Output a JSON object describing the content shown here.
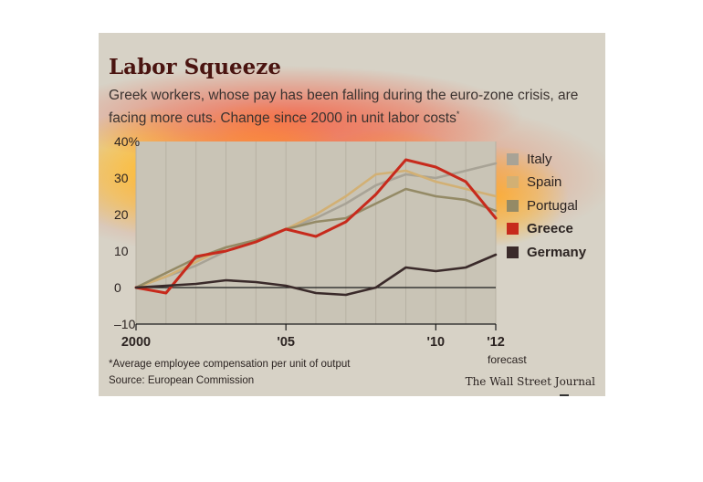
{
  "title": "Labor Squeeze",
  "subtitle": "Greek workers, whose pay has been falling during the euro-zone crisis, are facing more cuts. Change since 2000 in unit labor costs",
  "subtitle_mark": "*",
  "footnote": "*Average employee compensation per unit of output",
  "source": "Source: European Commission",
  "credit": "The Wall Street Journal",
  "forecast_label": "forecast",
  "chart_data": {
    "type": "line",
    "x": [
      2000,
      2001,
      2002,
      2003,
      2004,
      2005,
      2006,
      2007,
      2008,
      2009,
      2010,
      2011,
      2012
    ],
    "x_tick_values": [
      2000,
      2005,
      2010,
      2012
    ],
    "x_tick_labels": [
      "2000",
      "'05",
      "'10",
      "'12"
    ],
    "forecast_start": 2011,
    "y_ticks": [
      -10,
      0,
      10,
      20,
      30,
      40
    ],
    "y_tick_labels": [
      "–10",
      "0",
      "10",
      "20",
      "30",
      "40%"
    ],
    "ylim": [
      -10,
      40
    ],
    "xlim": [
      2000,
      2012
    ],
    "grid": true,
    "legend_position": "right",
    "series": [
      {
        "name": "Italy",
        "color": "#a8a396",
        "values": [
          0,
          3,
          6,
          10,
          13,
          16,
          19,
          23,
          28,
          31,
          30,
          32,
          34
        ]
      },
      {
        "name": "Spain",
        "color": "#d2b074",
        "values": [
          0,
          3,
          7,
          11,
          13,
          16,
          20,
          25,
          31,
          32,
          29,
          27,
          25
        ]
      },
      {
        "name": "Portugal",
        "color": "#948a66",
        "values": [
          0,
          4,
          8,
          11,
          13,
          16,
          18,
          19,
          23,
          27,
          25,
          24,
          21
        ]
      },
      {
        "name": "Greece",
        "color": "#c72a1c",
        "values": [
          0,
          -1.5,
          8.5,
          10,
          12.5,
          16,
          14,
          18,
          25.5,
          35,
          33,
          29,
          19
        ]
      },
      {
        "name": "Germany",
        "color": "#3a2a2a",
        "values": [
          0,
          0.5,
          1,
          2,
          1.5,
          0.5,
          -1.5,
          -2,
          0,
          5.5,
          4.5,
          5.5,
          9
        ]
      }
    ],
    "heat_spots": [
      {
        "x": 2000.4,
        "y": 32,
        "rx": 95,
        "ry": 70,
        "color": "#ffec40",
        "opacity": 0.95
      },
      {
        "x": 2004.0,
        "y": 32,
        "rx": 105,
        "ry": 75,
        "color": "#ffec40",
        "opacity": 0.95
      },
      {
        "x": 2008.5,
        "y": 28,
        "rx": 110,
        "ry": 62,
        "color": "#ffd22e",
        "opacity": 0.9
      },
      {
        "x": 2012.0,
        "y": 25,
        "rx": 80,
        "ry": 55,
        "color": "#ffcc30",
        "opacity": 0.85
      },
      {
        "x": 2006.0,
        "y": 30,
        "rx": 330,
        "ry": 95,
        "color": "#ff4a1a",
        "opacity": 0.55
      },
      {
        "x": 2005.0,
        "y": 47,
        "rx": 260,
        "ry": 55,
        "color": "#ff3a1a",
        "opacity": 0.55
      }
    ]
  }
}
